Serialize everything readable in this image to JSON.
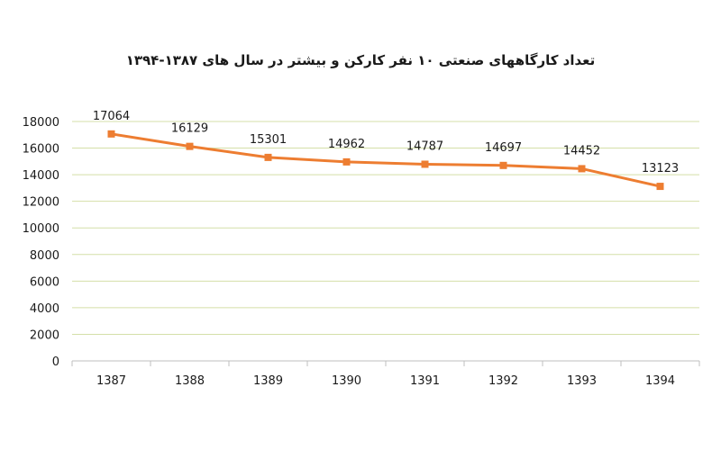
{
  "chart_data": {
    "type": "line",
    "title": "تعداد کارگاههای صنعتی ۱۰ نفر کارکن و بیشتر در سال های ۱۳۸۷-۱۳۹۴",
    "categories": [
      "1387",
      "1388",
      "1389",
      "1390",
      "1391",
      "1392",
      "1393",
      "1394"
    ],
    "series": [
      {
        "values": [
          17064,
          16129,
          15301,
          14962,
          14787,
          14697,
          14452,
          13123
        ]
      }
    ],
    "xlabel": "",
    "ylabel": "",
    "ylim": [
      0,
      18000
    ],
    "yticks": [
      0,
      2000,
      4000,
      6000,
      8000,
      10000,
      12000,
      14000,
      16000,
      18000
    ],
    "grid": true,
    "legend": "none",
    "colors": {
      "line": "#ED7D31",
      "grid": "#D4DFA8",
      "axis": "#BFBFBF"
    }
  }
}
